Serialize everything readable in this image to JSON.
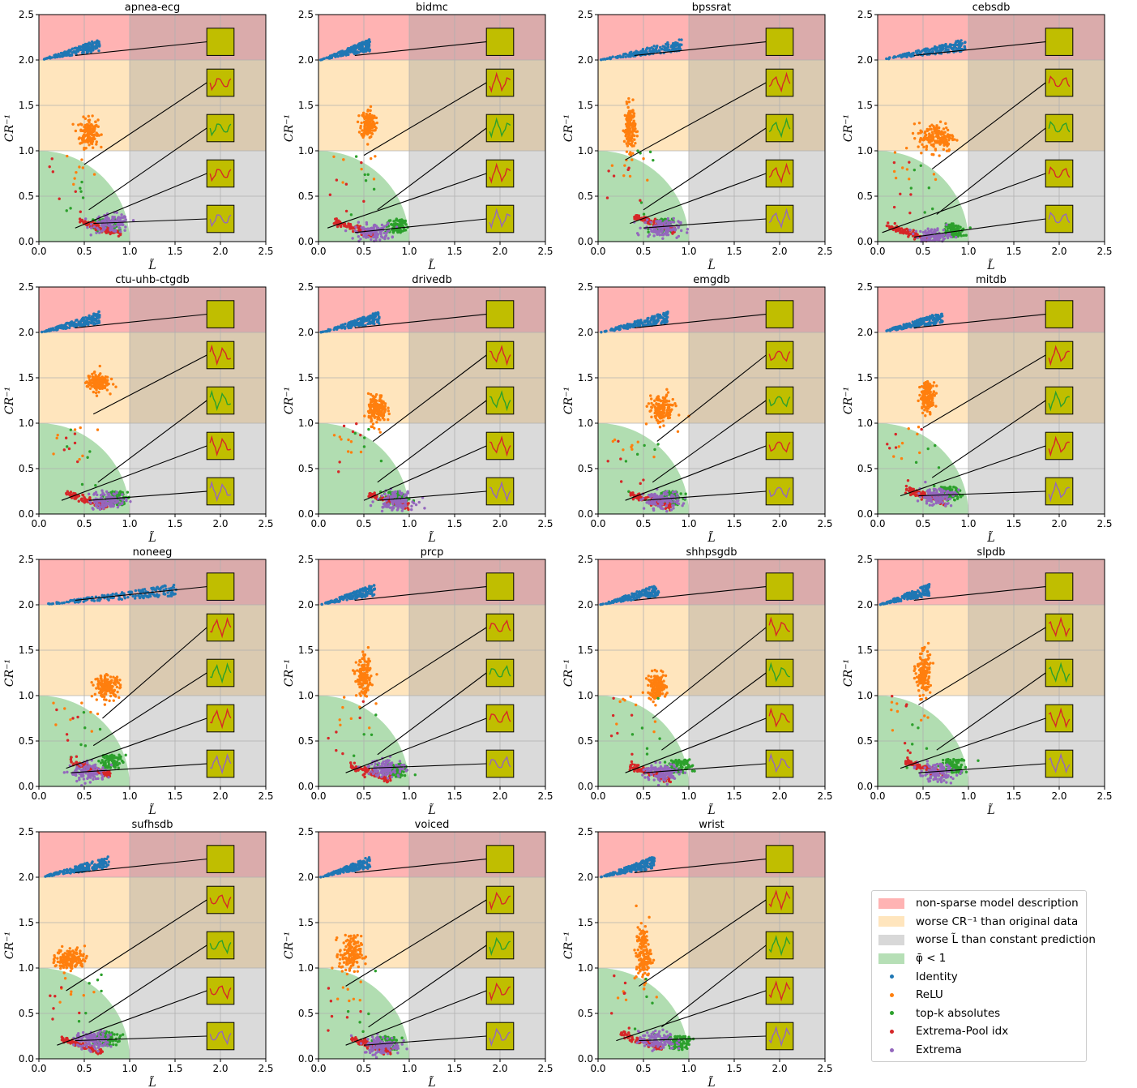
{
  "chart_data": {
    "type": "scatter",
    "panels": [
      {
        "title": "apnea-ecg"
      },
      {
        "title": "bidmc"
      },
      {
        "title": "bpssrat"
      },
      {
        "title": "cebsdb"
      },
      {
        "title": "ctu-uhb-ctgdb"
      },
      {
        "title": "drivedb"
      },
      {
        "title": "emgdb"
      },
      {
        "title": "mitdb"
      },
      {
        "title": "noneeg"
      },
      {
        "title": "prcp"
      },
      {
        "title": "shhpsgdb"
      },
      {
        "title": "slpdb"
      },
      {
        "title": "sufhsdb"
      },
      {
        "title": "voiced"
      },
      {
        "title": "wrist"
      }
    ],
    "xlabel": "L̃",
    "ylabel": "CR⁻¹",
    "xlim": [
      0.0,
      2.5
    ],
    "ylim": [
      0.0,
      2.5
    ],
    "xticks": [
      "0.0",
      "0.5",
      "1.0",
      "1.5",
      "2.0",
      "2.5"
    ],
    "yticks": [
      "0.0",
      "0.5",
      "1.0",
      "1.5",
      "2.0",
      "2.5"
    ],
    "grid": true,
    "regions": [
      {
        "label": "non-sparse model description",
        "color": "#ff9896",
        "area": "CR⁻¹ > 2"
      },
      {
        "label": "worse CR⁻¹ than original data",
        "color": "#ffd99b",
        "area": "1 < CR⁻¹ < 2"
      },
      {
        "label": "worse L̃ than constant prediction",
        "color": "#bdbdbd",
        "area": "L̃ > 1"
      },
      {
        "label": "φ̄ < 1",
        "color": "#90ce90",
        "area": "quarter circle of radius 1"
      }
    ],
    "series": [
      {
        "name": "Identity",
        "color": "#1f77b4"
      },
      {
        "name": "ReLU",
        "color": "#ff7f0e"
      },
      {
        "name": "top-k absolutes",
        "color": "#2ca02c"
      },
      {
        "name": "Extrema-Pool idx",
        "color": "#d62728"
      },
      {
        "name": "Extrema",
        "color": "#9467bd"
      }
    ],
    "inset_background": "#c0be00",
    "legend_position": "bottom-right"
  }
}
